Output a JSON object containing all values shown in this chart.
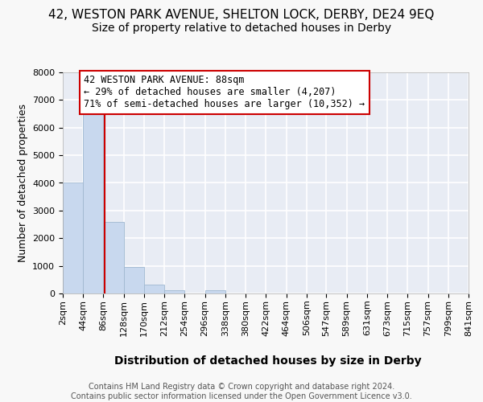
{
  "title1": "42, WESTON PARK AVENUE, SHELTON LOCK, DERBY, DE24 9EQ",
  "title2": "Size of property relative to detached houses in Derby",
  "xlabel": "Distribution of detached houses by size in Derby",
  "ylabel": "Number of detached properties",
  "footer": "Contains HM Land Registry data © Crown copyright and database right 2024.\nContains public sector information licensed under the Open Government Licence v3.0.",
  "bin_edges": [
    2,
    44,
    86,
    128,
    170,
    212,
    254,
    296,
    338,
    380,
    422,
    464,
    506,
    547,
    589,
    631,
    673,
    715,
    757,
    799,
    841
  ],
  "bar_heights": [
    4000,
    6600,
    2600,
    950,
    330,
    130,
    0,
    130,
    0,
    0,
    0,
    0,
    0,
    0,
    0,
    0,
    0,
    0,
    0,
    0
  ],
  "bar_color": "#c8d8ee",
  "bar_edge_color": "#a0b8d0",
  "property_size": 88,
  "property_line_color": "#cc0000",
  "annotation_line1": "42 WESTON PARK AVENUE: 88sqm",
  "annotation_line2": "← 29% of detached houses are smaller (4,207)",
  "annotation_line3": "71% of semi-detached houses are larger (10,352) →",
  "annotation_box_color": "#ffffff",
  "annotation_border_color": "#cc0000",
  "ylim_min": 0,
  "ylim_max": 8000,
  "yticks": [
    0,
    1000,
    2000,
    3000,
    4000,
    5000,
    6000,
    7000,
    8000
  ],
  "fig_bg_color": "#f8f8f8",
  "plot_bg_color": "#e8ecf4",
  "grid_color": "#ffffff",
  "title1_fontsize": 11,
  "title2_fontsize": 10,
  "xlabel_fontsize": 10,
  "ylabel_fontsize": 9,
  "tick_fontsize": 8,
  "footer_fontsize": 7,
  "annotation_fontsize": 8.5
}
